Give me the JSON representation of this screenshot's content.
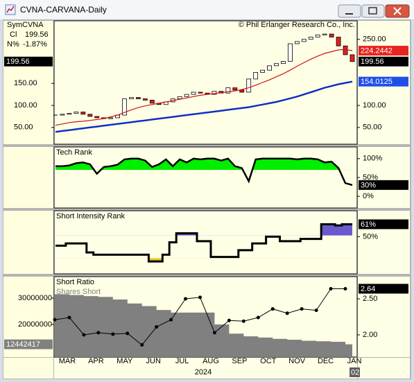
{
  "window": {
    "title": "CVNA-CARVANA-Daily"
  },
  "info": {
    "sym_label": "Sym",
    "sym": "CVNA",
    "cl_label": "Cl",
    "cl": "199.56",
    "n_label": "N%",
    "n": "-1.87%"
  },
  "chart_data": [
    {
      "type": "candle",
      "annotation": "© Phil Erlanger Research Co., Inc.",
      "categories": [
        null,
        null,
        null,
        null,
        null,
        null,
        null,
        null,
        null,
        null,
        null,
        null,
        null,
        null,
        null,
        null,
        null,
        null,
        null,
        null,
        null,
        null,
        null,
        null,
        null,
        null,
        null,
        null,
        null,
        null,
        null,
        null,
        null,
        null,
        null,
        null,
        null,
        null,
        null,
        null,
        null,
        null,
        null,
        null
      ],
      "ylim": [
        12,
        292
      ],
      "yticks": [
        {
          "value": 250,
          "label": "250.00"
        },
        {
          "value": 100,
          "label": "100.00"
        },
        {
          "value": 50,
          "label": "50.00"
        }
      ],
      "left_yticks": [
        {
          "value": 150,
          "label": "150.00"
        },
        {
          "value": 100,
          "label": "100.00"
        },
        {
          "value": 50,
          "label": "50.00"
        }
      ],
      "series": [
        {
          "color": "#000000",
          "up_color": "#ffffff",
          "down_color": "#e02020",
          "end_label": "199.56",
          "label_color": "#000000",
          "values": [
            78,
            80,
            82,
            85,
            80,
            75,
            72,
            70,
            72,
            78,
            115,
            118,
            115,
            112,
            105,
            102,
            108,
            115,
            120,
            125,
            130,
            128,
            125,
            132,
            128,
            140,
            135,
            130,
            160,
            175,
            180,
            190,
            195,
            200,
            240,
            245,
            250,
            255,
            260,
            262,
            255,
            235,
            215,
            199.56
          ]
        },
        {
          "color": "#d01010",
          "end_label": "224.2442",
          "label_color": "#e8241f",
          "values": [
            55,
            58,
            61,
            63,
            64,
            66,
            68,
            70,
            74,
            78,
            84,
            90,
            95,
            99,
            102,
            105,
            108,
            111,
            114,
            117,
            120,
            123,
            125,
            127,
            129,
            131,
            133,
            136,
            140,
            146,
            152,
            158,
            165,
            172,
            180,
            189,
            197,
            205,
            212,
            218,
            222,
            226,
            227,
            224.2442
          ]
        },
        {
          "color": "#1030c0",
          "end_label": "154.0125",
          "label_color": "#1f4fe8",
          "values": [
            40,
            42,
            44,
            46,
            48,
            50,
            52,
            54,
            56,
            58,
            60,
            62,
            64,
            66,
            68,
            70,
            72,
            74,
            76,
            78,
            80,
            82,
            84,
            86,
            88,
            90,
            92,
            94,
            96,
            99,
            102,
            105,
            108,
            112,
            116,
            120,
            125,
            130,
            135,
            140,
            144,
            148,
            151,
            154.0125
          ]
        }
      ]
    },
    {
      "type": "line",
      "title": "Tech Rank",
      "categories": [
        null,
        null,
        null,
        null,
        null,
        null,
        null,
        null,
        null,
        null,
        null,
        null,
        null,
        null,
        null,
        null,
        null,
        null,
        null,
        null,
        null,
        null,
        null,
        null,
        null,
        null,
        null,
        null,
        null,
        null,
        null,
        null,
        null,
        null,
        null,
        null,
        null,
        null,
        null,
        null,
        null,
        null,
        null,
        null
      ],
      "ylim": [
        -31,
        131
      ],
      "yticks": [
        {
          "value": 100,
          "label": "100%"
        },
        {
          "value": 50,
          "label": "50%"
        },
        {
          "value": 0,
          "label": "0%"
        }
      ],
      "fill_above": 70,
      "fill_color": "#00ee00",
      "series": [
        {
          "color": "#000000",
          "end_label": "30%",
          "values": [
            80,
            80,
            82,
            88,
            90,
            85,
            60,
            78,
            80,
            84,
            98,
            100,
            100,
            95,
            78,
            85,
            98,
            80,
            98,
            90,
            100,
            98,
            100,
            100,
            95,
            100,
            80,
            75,
            40,
            98,
            100,
            100,
            100,
            100,
            100,
            98,
            100,
            100,
            98,
            90,
            92,
            75,
            35,
            30
          ]
        }
      ]
    },
    {
      "type": "step",
      "title": "Short Intensity Rank",
      "categories": [
        null,
        null,
        null,
        null,
        null,
        null,
        null,
        null,
        null,
        null,
        null,
        null,
        null,
        null,
        null,
        null,
        null,
        null,
        null,
        null,
        null,
        null,
        null,
        null,
        null,
        null,
        null,
        null,
        null,
        null,
        null,
        null,
        null,
        null,
        null,
        null,
        null,
        null,
        null,
        null,
        null,
        null,
        null,
        null
      ],
      "ylim": [
        17,
        73
      ],
      "yticks": [
        {
          "value": 50,
          "label": "50%"
        }
      ],
      "upper_fill": {
        "threshold": 51,
        "color": "#6a5acd"
      },
      "lower_fill": {
        "threshold": 31,
        "color": "#f0c020"
      },
      "series": [
        {
          "color": "#000000",
          "end_label": "61%",
          "values": [
            42,
            42,
            44,
            44,
            44,
            36,
            34,
            34,
            34,
            34,
            34,
            34,
            34,
            34,
            28,
            28,
            34,
            45,
            53,
            53,
            53,
            46,
            46,
            32,
            32,
            32,
            32,
            38,
            38,
            44,
            44,
            50,
            50,
            46,
            46,
            46,
            48,
            48,
            48,
            61,
            61,
            60,
            61,
            61
          ]
        }
      ]
    },
    {
      "type": "combo",
      "title": "Short Ratio",
      "categories": [
        null,
        null,
        null,
        null,
        null,
        null,
        null,
        null,
        null,
        null,
        null,
        null,
        null,
        null,
        null,
        null,
        null,
        null,
        null,
        null,
        null
      ],
      "month_labels": [
        "MAR",
        "APR",
        "MAY",
        "JUN",
        "JUL",
        "AUG",
        "SEP",
        "OCT",
        "NOV",
        "DEC",
        "JAN"
      ],
      "year": "2024",
      "year_end_label": "02",
      "ylim": [
        7600000,
        38200000
      ],
      "yticks": [
        30000000,
        20000000
      ],
      "y2lim": [
        1.692,
        2.808
      ],
      "y2ticks": [
        {
          "value": 2.5,
          "label": "2.50"
        },
        {
          "value": 2.0,
          "label": "2.00"
        }
      ],
      "series": [
        {
          "name": "Shares Short",
          "type": "step-area",
          "color": "#808080",
          "end_label": "12442417",
          "values": [
            31500000,
            31200000,
            30800000,
            30500000,
            29500000,
            28000000,
            27000000,
            25500000,
            24500000,
            24500000,
            24500000,
            20000000,
            16500000,
            15500000,
            15000000,
            14500000,
            14200000,
            13800000,
            13600000,
            13400000,
            12442417
          ]
        },
        {
          "type": "line",
          "axis": "y2",
          "color": "#000000",
          "end_label": "2.64",
          "values": [
            2.21,
            2.24,
            2.0,
            2.03,
            2.01,
            2.02,
            1.86,
            2.11,
            2.21,
            2.5,
            2.52,
            2.03,
            2.2,
            2.19,
            2.24,
            2.36,
            2.3,
            2.36,
            2.34,
            2.64,
            2.64
          ]
        }
      ]
    }
  ]
}
